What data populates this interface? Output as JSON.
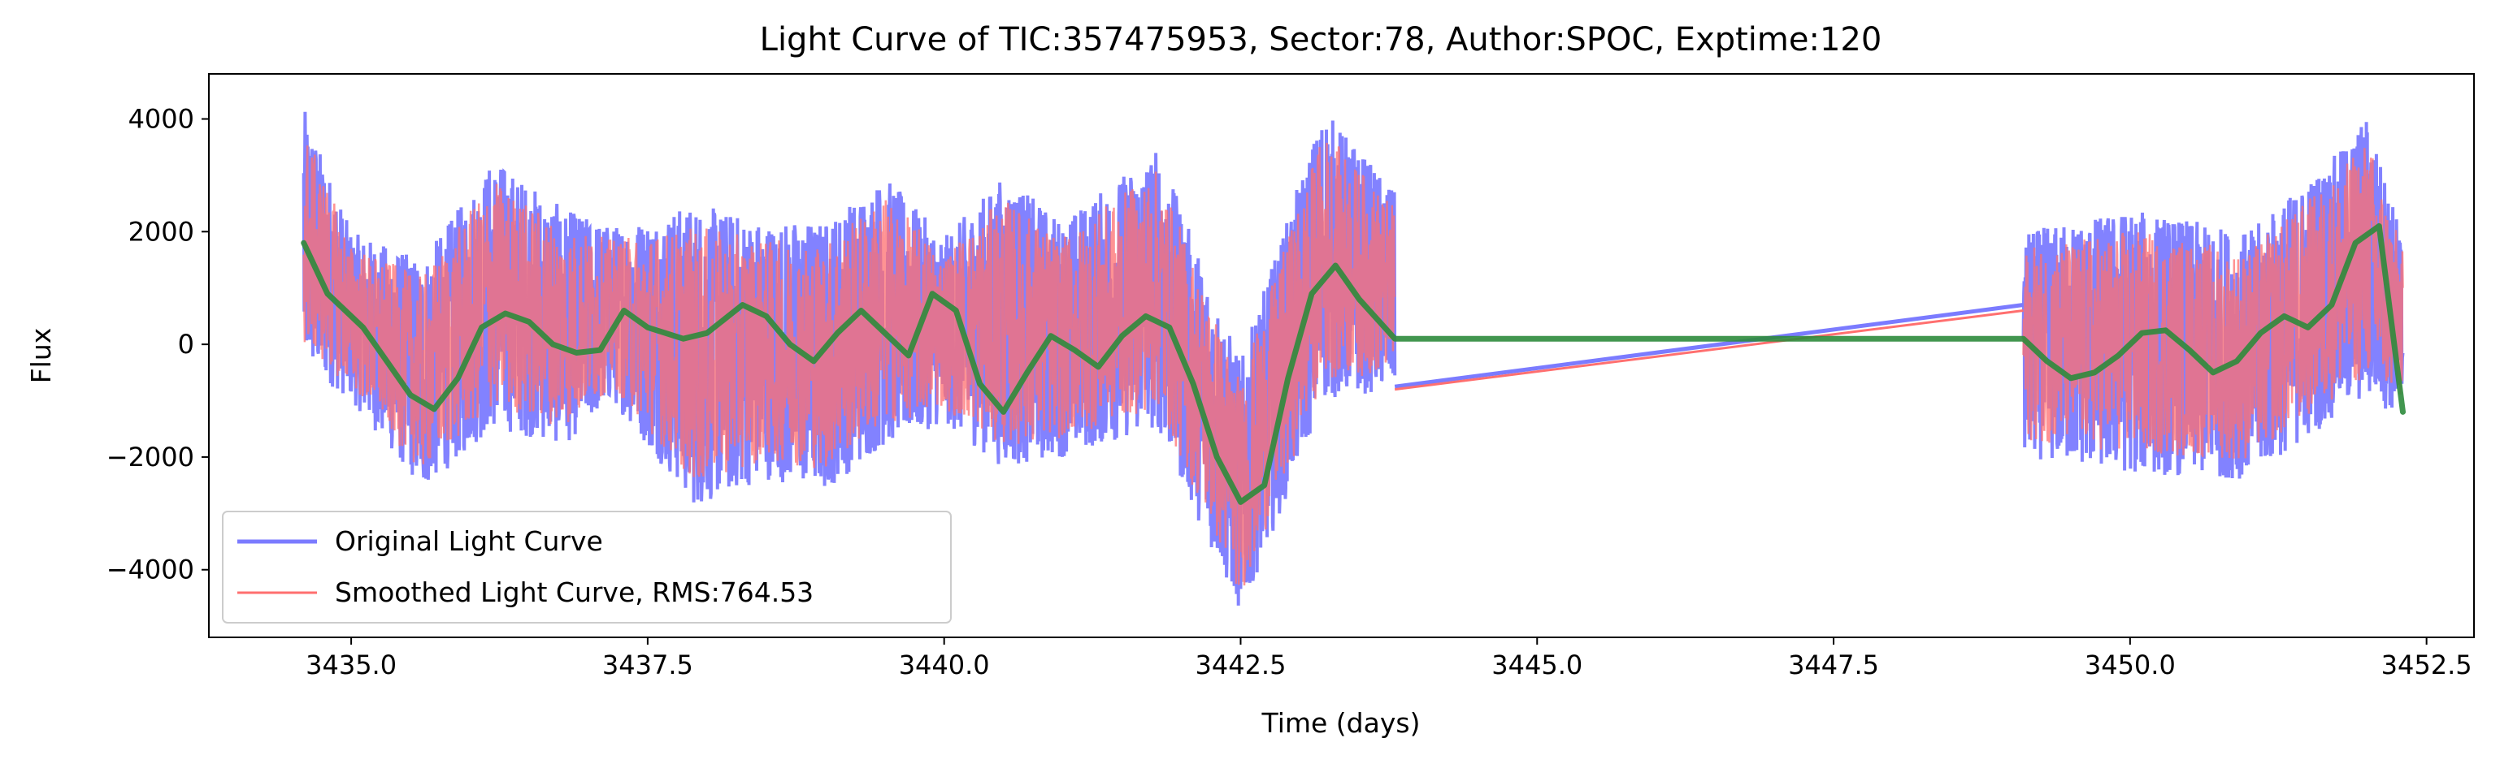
{
  "chart_data": {
    "type": "line",
    "title": "Light Curve of TIC:357475953, Sector:78, Author:SPOC, Exptime:120",
    "xlabel": "Time (days)",
    "ylabel": "Flux",
    "xlim": [
      3433.8,
      3452.9
    ],
    "ylim": [
      -5200,
      4800
    ],
    "x_ticks": [
      3435.0,
      3437.5,
      3440.0,
      3442.5,
      3445.0,
      3447.5,
      3450.0,
      3452.5
    ],
    "x_tick_labels": [
      "3435.0",
      "3437.5",
      "3440.0",
      "3442.5",
      "3445.0",
      "3447.5",
      "3450.0",
      "3452.5"
    ],
    "y_ticks": [
      4000,
      2000,
      0,
      -2000,
      -4000
    ],
    "y_tick_labels": [
      "4000",
      "2000",
      "0",
      "−2000",
      "−4000"
    ],
    "grid": false,
    "legend_position": "lower-left",
    "segments": [
      {
        "start": 3434.6,
        "end": 3443.8
      },
      {
        "start": 3449.1,
        "end": 3452.3
      }
    ],
    "series": [
      {
        "name": "Original Light Curve",
        "color": "#7b7bff",
        "style": "noisy-line",
        "envelope": [
          {
            "x": 3434.6,
            "low": -400,
            "high": 4200
          },
          {
            "x": 3435.0,
            "low": -1000,
            "high": 2000
          },
          {
            "x": 3435.6,
            "low": -2600,
            "high": 1500
          },
          {
            "x": 3436.2,
            "low": -1500,
            "high": 3300
          },
          {
            "x": 3436.8,
            "low": -1800,
            "high": 2400
          },
          {
            "x": 3437.2,
            "low": -1000,
            "high": 2100
          },
          {
            "x": 3437.9,
            "low": -2900,
            "high": 2500
          },
          {
            "x": 3438.5,
            "low": -2400,
            "high": 2200
          },
          {
            "x": 3439.0,
            "low": -2600,
            "high": 2200
          },
          {
            "x": 3439.5,
            "low": -1800,
            "high": 3000
          },
          {
            "x": 3440.0,
            "low": -1400,
            "high": 1900
          },
          {
            "x": 3440.5,
            "low": -2200,
            "high": 3000
          },
          {
            "x": 3441.0,
            "low": -2000,
            "high": 2200
          },
          {
            "x": 3441.8,
            "low": -1500,
            "high": 3500
          },
          {
            "x": 3442.5,
            "low": -4800,
            "high": -300
          },
          {
            "x": 3443.2,
            "low": -1000,
            "high": 4200
          },
          {
            "x": 3443.8,
            "low": -800,
            "high": 2700
          },
          {
            "x": 3449.1,
            "low": -2000,
            "high": 2000
          },
          {
            "x": 3450.0,
            "low": -2300,
            "high": 2400
          },
          {
            "x": 3451.0,
            "low": -2400,
            "high": 2000
          },
          {
            "x": 3451.8,
            "low": -1200,
            "high": 3500
          },
          {
            "x": 3452.0,
            "low": -1000,
            "high": 4100
          },
          {
            "x": 3452.3,
            "low": -1300,
            "high": 1900
          }
        ],
        "gap_line": [
          [
            3443.8,
            -750
          ],
          [
            3449.1,
            700
          ]
        ]
      },
      {
        "name": "Smoothed Light Curve, RMS:764.53",
        "color": "#ff6f6f",
        "style": "noisy-line",
        "gap_line": [
          [
            3443.8,
            -800
          ],
          [
            3449.1,
            600
          ]
        ]
      },
      {
        "name": "",
        "color": "#2e8b3c",
        "style": "smooth-line",
        "x": [
          3434.6,
          3434.8,
          3435.1,
          3435.3,
          3435.5,
          3435.7,
          3435.9,
          3436.1,
          3436.3,
          3436.5,
          3436.7,
          3436.9,
          3437.1,
          3437.3,
          3437.5,
          3437.8,
          3438.0,
          3438.3,
          3438.5,
          3438.7,
          3438.9,
          3439.1,
          3439.3,
          3439.5,
          3439.7,
          3439.9,
          3440.1,
          3440.3,
          3440.5,
          3440.7,
          3440.9,
          3441.1,
          3441.3,
          3441.5,
          3441.7,
          3441.9,
          3442.1,
          3442.3,
          3442.5,
          3442.7,
          3442.9,
          3443.1,
          3443.3,
          3443.5,
          3443.8,
          3449.1,
          3449.3,
          3449.5,
          3449.7,
          3449.9,
          3450.1,
          3450.3,
          3450.5,
          3450.7,
          3450.9,
          3451.1,
          3451.3,
          3451.5,
          3451.7,
          3451.9,
          3452.1,
          3452.3
        ],
        "y": [
          1800,
          900,
          300,
          -300,
          -900,
          -1150,
          -600,
          300,
          550,
          400,
          0,
          -150,
          -100,
          600,
          300,
          100,
          200,
          700,
          500,
          0,
          -300,
          200,
          600,
          200,
          -200,
          900,
          600,
          -700,
          -1200,
          -500,
          150,
          -100,
          -400,
          150,
          500,
          300,
          -700,
          -2000,
          -2800,
          -2500,
          -600,
          900,
          1400,
          800,
          100,
          100,
          -300,
          -600,
          -500,
          -200,
          200,
          250,
          -100,
          -500,
          -300,
          200,
          500,
          300,
          700,
          1800,
          2100,
          -1200
        ]
      }
    ]
  }
}
